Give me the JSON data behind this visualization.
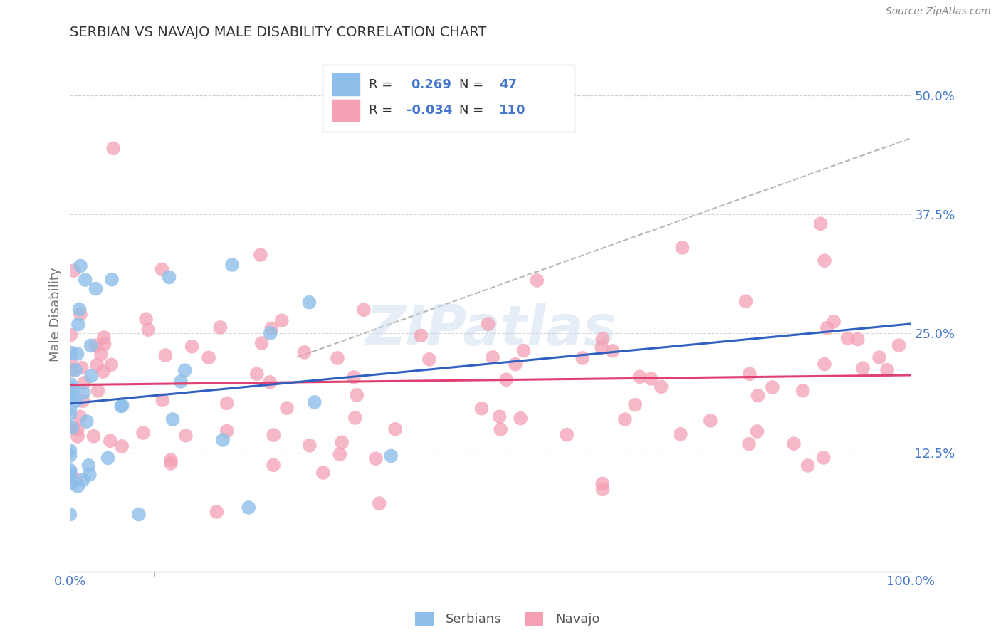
{
  "title": "SERBIAN VS NAVAJO MALE DISABILITY CORRELATION CHART",
  "source": "Source: ZipAtlas.com",
  "ylabel": "Male Disability",
  "xlim": [
    0.0,
    1.0
  ],
  "ylim": [
    0.0,
    0.54
  ],
  "xtick_labels": [
    "0.0%",
    "100.0%"
  ],
  "xtick_positions": [
    0.0,
    1.0
  ],
  "ytick_labels": [
    "12.5%",
    "25.0%",
    "37.5%",
    "50.0%"
  ],
  "ytick_positions": [
    0.125,
    0.25,
    0.375,
    0.5
  ],
  "background_color": "#ffffff",
  "grid_color": "#cccccc",
  "title_color": "#333333",
  "source_color": "#888888",
  "serbian_color": "#8dbfea",
  "navajo_color": "#f4a0b4",
  "serbian_line_color": "#3060c0",
  "navajo_line_color": "#e04070",
  "trend_dash_color": "#aaaaaa",
  "legend_serbian_R": "0.269",
  "legend_serbian_N": "47",
  "legend_navajo_R": "-0.034",
  "legend_navajo_N": "110",
  "watermark": "ZIPatlas",
  "label_color": "#4477cc",
  "serbian_R": 0.269,
  "navajo_R": -0.034,
  "serbian_N": 47,
  "navajo_N": 110
}
